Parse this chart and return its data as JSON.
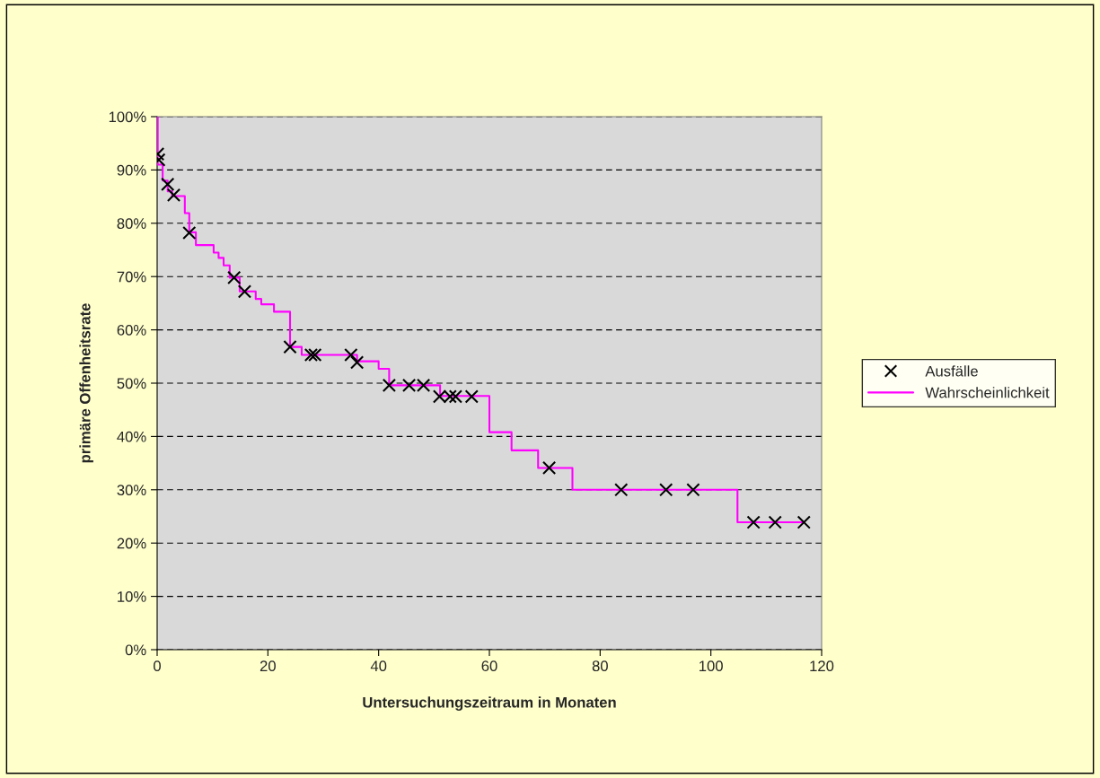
{
  "chart_data": {
    "type": "scatter",
    "xlabel": "Untersuchungszeitraum in Monaten",
    "ylabel": "primäre Offenheitsrate",
    "xlim": [
      0,
      120
    ],
    "xticks": [
      0,
      20,
      40,
      60,
      80,
      100,
      120
    ],
    "ylim": [
      0,
      100
    ],
    "yticks": [
      {
        "value": 0,
        "label": "0%"
      },
      {
        "value": 10,
        "label": "10%"
      },
      {
        "value": 20,
        "label": "20%"
      },
      {
        "value": 30,
        "label": "30%"
      },
      {
        "value": 40,
        "label": "40%"
      },
      {
        "value": 50,
        "label": "50%"
      },
      {
        "value": 60,
        "label": "60%"
      },
      {
        "value": 70,
        "label": "70%"
      },
      {
        "value": 80,
        "label": "80%"
      },
      {
        "value": 90,
        "label": "90%"
      },
      {
        "value": 100,
        "label": "100%"
      }
    ],
    "grid": "y",
    "legend": "right",
    "series": [
      {
        "name": "Ausfälle",
        "marker": "cross",
        "color": "#000000",
        "x": [
          0.1,
          0.3,
          1.9,
          3.0,
          5.8,
          13.9,
          15.8,
          24.0,
          27.8,
          28.5,
          35.0,
          36.1,
          41.9,
          45.5,
          48.1,
          51.0,
          52.9,
          53.9,
          56.8,
          70.8,
          83.8,
          91.9,
          96.8,
          107.7,
          111.6,
          116.8
        ],
        "values": [
          93.0,
          91.9,
          87.3,
          85.3,
          78.2,
          69.8,
          67.2,
          56.8,
          55.3,
          55.3,
          55.3,
          53.9,
          49.6,
          49.6,
          49.6,
          47.5,
          47.5,
          47.5,
          47.5,
          34.1,
          30.0,
          30.0,
          30.0,
          23.9,
          23.9,
          23.9
        ]
      },
      {
        "name": "Wahrscheinlichkeit",
        "type": "step",
        "color": "#ff00ff",
        "x": [
          0,
          0.1,
          1.0,
          1.9,
          2.7,
          5.0,
          5.8,
          7.0,
          10.2,
          11.1,
          12.0,
          13.1,
          14.9,
          17.8,
          18.8,
          21.1,
          24.0,
          26.1,
          36.1,
          40.0,
          41.9,
          51.1,
          60.0,
          64.0,
          68.8,
          75.0,
          104.8,
          116.8
        ],
        "values": [
          100,
          91.0,
          88.0,
          86.0,
          85.1,
          81.9,
          78.3,
          75.9,
          74.5,
          73.5,
          72.1,
          69.8,
          67.2,
          65.8,
          64.8,
          63.4,
          56.8,
          55.3,
          54.1,
          52.7,
          49.6,
          47.6,
          40.8,
          37.4,
          34.1,
          30.0,
          23.9,
          23.9
        ]
      }
    ]
  }
}
